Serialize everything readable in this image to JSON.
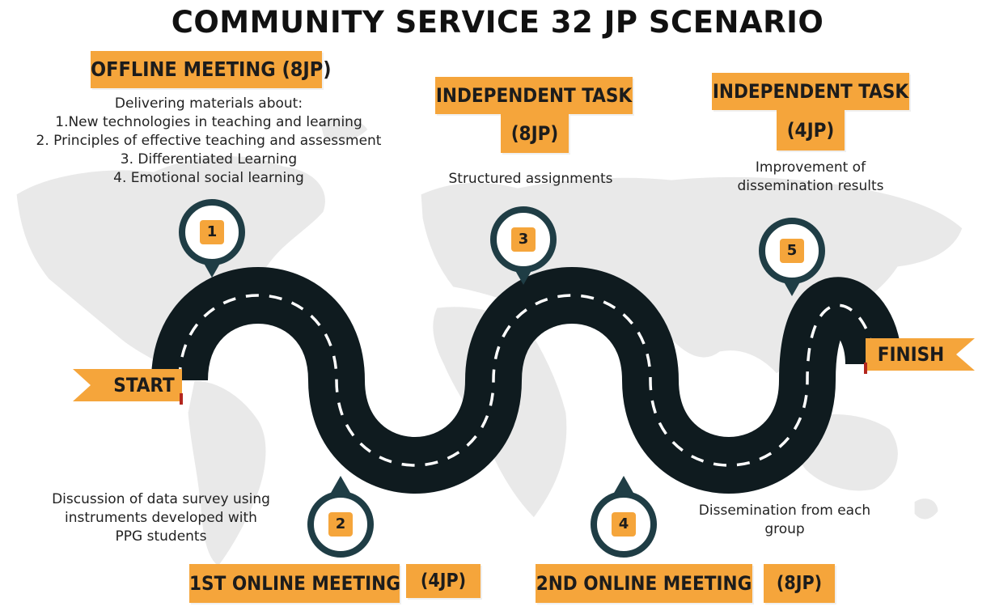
{
  "title": "COMMUNITY SERVICE 32 JP SCENARIO",
  "colors": {
    "accent": "#f5a53b",
    "road": "#0f1b1f",
    "marker": "#1f3d45",
    "map": "#e7e7e7"
  },
  "start_label": "START",
  "finish_label": "FINISH",
  "steps": [
    {
      "number": "1",
      "title": "OFFLINE MEETING (8JP)",
      "description": [
        "Delivering materials about:",
        "1.New technologies in teaching and learning",
        "2. Principles of effective teaching and assessment",
        "3. Differentiated Learning",
        "4. Emotional social learning"
      ]
    },
    {
      "number": "2",
      "title": "1ST ONLINE MEETING",
      "hours": "(4JP)",
      "description": [
        "Discussion of data survey using",
        "instruments developed with",
        "PPG students"
      ]
    },
    {
      "number": "3",
      "title": "INDEPENDENT TASK",
      "hours": "(8JP)",
      "description": [
        "Structured assignments"
      ]
    },
    {
      "number": "4",
      "title": "2ND ONLINE MEETING",
      "hours": "(8JP)",
      "description": [
        "Dissemination from each",
        "group"
      ]
    },
    {
      "number": "5",
      "title": "INDEPENDENT TASK",
      "hours": "(4JP)",
      "description": [
        "Improvement of",
        "dissemination results"
      ]
    }
  ]
}
